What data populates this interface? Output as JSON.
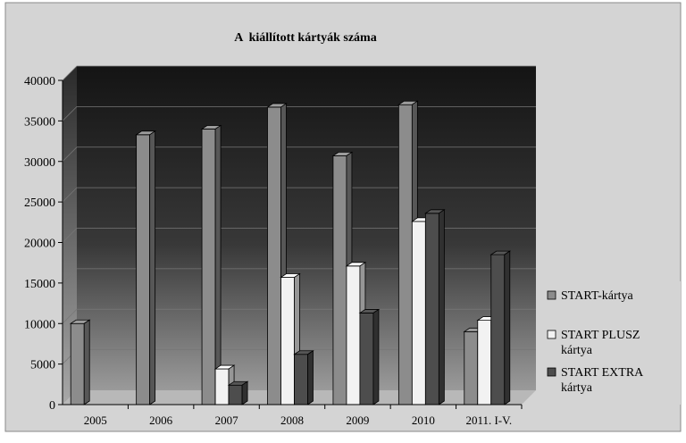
{
  "chart_data": {
    "type": "bar",
    "title": "A  kiállított kártyák száma",
    "xlabel": "",
    "ylabel": "",
    "categories": [
      "2005",
      "2006",
      "2007",
      "2008",
      "2009",
      "2010",
      "2011. I-V."
    ],
    "ylim": [
      0,
      40000
    ],
    "yticks": [
      "0",
      "5000",
      "10000",
      "15000",
      "20000",
      "25000",
      "30000",
      "35000",
      "40000"
    ],
    "grid": true,
    "legend": "right",
    "series": [
      {
        "name": "START-kártya",
        "name_lines": [
          "START-kártya"
        ],
        "color": "#8c8c8c",
        "values": [
          10000,
          33300,
          34000,
          36700,
          30700,
          37000,
          9000
        ]
      },
      {
        "name": "START PLUSZ kártya",
        "name_lines": [
          "START PLUSZ",
          "kártya"
        ],
        "color": "#f2f2f2",
        "values": [
          null,
          null,
          4400,
          15700,
          17100,
          22600,
          10400
        ]
      },
      {
        "name": "START EXTRA kártya",
        "name_lines": [
          "START EXTRA",
          "kártya"
        ],
        "color": "#4d4d4d",
        "values": [
          null,
          null,
          2400,
          6200,
          11300,
          23600,
          18500
        ]
      }
    ]
  }
}
